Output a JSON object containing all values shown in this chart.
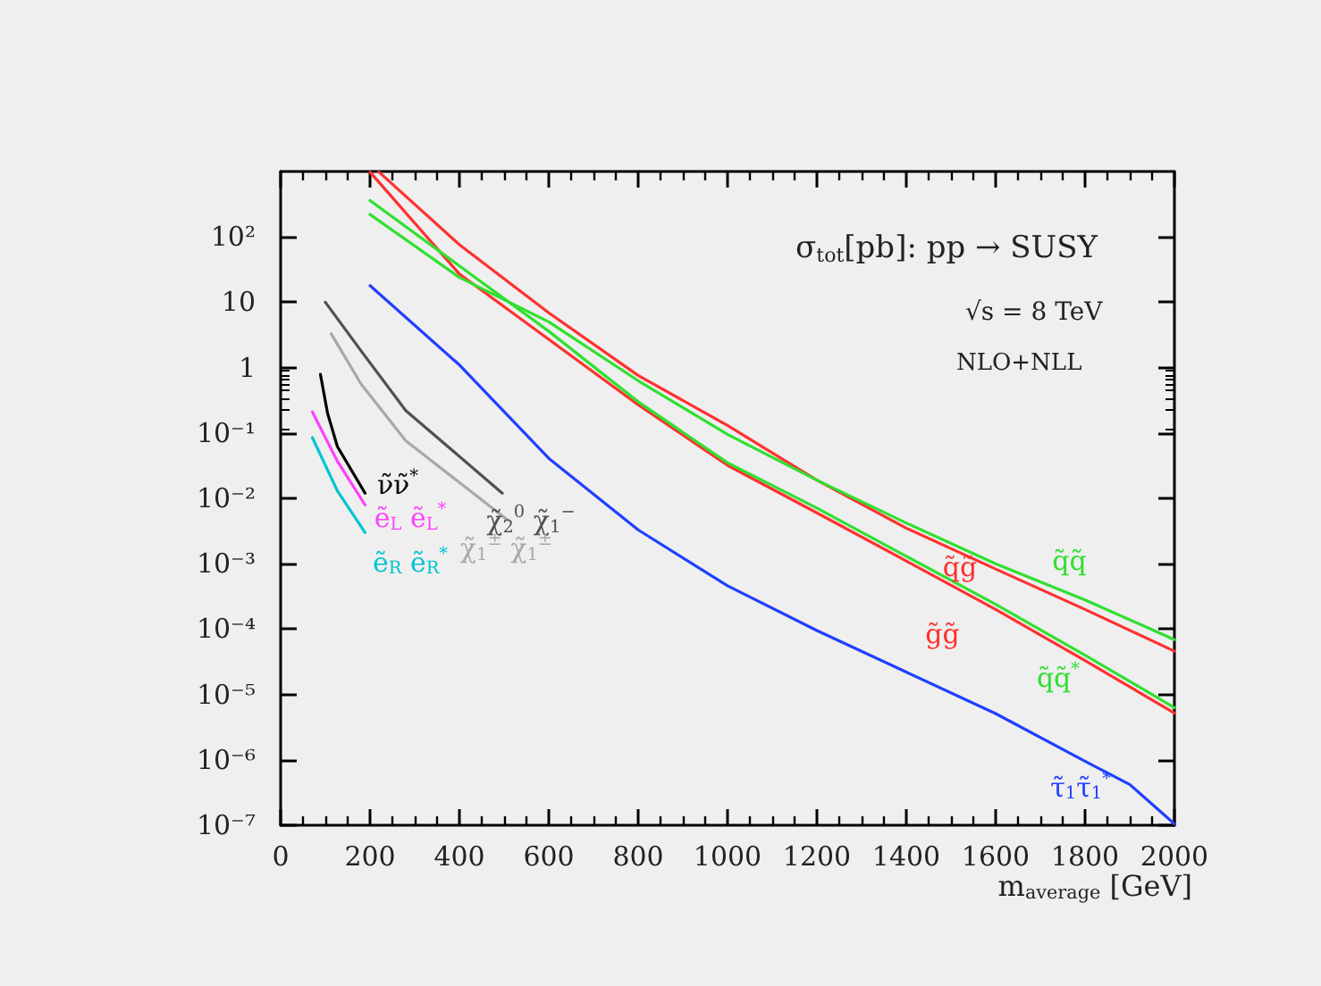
{
  "chart_data": {
    "type": "line",
    "title": "σ$_{tot}$[pb]: pp → SUSY",
    "subtitle": "√s = 8 TeV",
    "xlabel": "m$_{average}$ [GeV]",
    "log": "y",
    "xlim": [
      0,
      2000
    ],
    "xticks": [
      0,
      200,
      400,
      600,
      800,
      1000,
      1200,
      1400,
      1600,
      1800,
      2000
    ],
    "ylim": [
      1e-07,
      1000
    ],
    "yticks": [
      {
        "value": 100,
        "label": "10²"
      },
      {
        "value": 10,
        "label": "10"
      },
      {
        "value": 1,
        "label": "1"
      },
      {
        "value": 0.1,
        "label": "10⁻¹"
      },
      {
        "value": 0.01,
        "label": "10⁻²"
      },
      {
        "value": 0.001,
        "label": "10⁻³"
      },
      {
        "value": 0.0001,
        "label": "10⁻⁴"
      },
      {
        "value": 1e-05,
        "label": "10⁻⁵"
      },
      {
        "value": 1e-06,
        "label": "10⁻⁶"
      },
      {
        "value": 1e-07,
        "label": "10⁻⁷"
      }
    ],
    "series": [
      {
        "name": "q̃g̃",
        "color": "#ff3030",
        "x": [
          220,
          400,
          600,
          800,
          1000,
          1200,
          1400,
          1600,
          1800,
          2000
        ],
        "values": [
          980,
          76,
          6.9,
          0.76,
          0.13,
          0.019,
          0.0035,
          0.00083,
          0.0002,
          4.6e-05
        ]
      },
      {
        "name": "g̃g̃",
        "color": "#ff3030",
        "x": [
          200,
          400,
          600,
          800,
          1000,
          1200,
          1400,
          1600,
          1800,
          2000
        ],
        "values": [
          980,
          27,
          2.7,
          0.27,
          0.032,
          0.006,
          0.0011,
          0.0002,
          3.3e-05,
          5.2e-06
        ]
      },
      {
        "name": "q̃q̃",
        "color": "#30e030",
        "x": [
          200,
          400,
          600,
          800,
          1000,
          1200,
          1400,
          1600,
          1800,
          2000
        ],
        "values": [
          220,
          24,
          5,
          0.63,
          0.095,
          0.019,
          0.0042,
          0.001,
          0.00028,
          6.9e-05
        ]
      },
      {
        "name": "q̃q̃$^{*}$",
        "color": "#30e030",
        "x": [
          200,
          400,
          600,
          800,
          1000,
          1200,
          1400,
          1600,
          1800,
          2000
        ],
        "values": [
          360,
          36,
          3.6,
          0.3,
          0.035,
          0.0071,
          0.0013,
          0.00024,
          4e-05,
          6.3e-06
        ]
      },
      {
        "name": "τ̃$_{1}$τ̃$_{1}$$^{*}$",
        "color": "#2040ff",
        "x": [
          200,
          400,
          600,
          800,
          1000,
          1200,
          1400,
          1600,
          1800,
          1900,
          2000
        ],
        "values": [
          18,
          1.1,
          0.041,
          0.0033,
          0.00046,
          9.5e-05,
          2.2e-05,
          5.1e-06,
          9.5e-07,
          4.2e-07,
          1.05e-07
        ]
      },
      {
        "name": "χ̃$_{2}$$^{0}$ χ̃$_{1}$$^{−}$",
        "color": "#505050",
        "x": [
          100,
          180,
          280,
          496
        ],
        "values": [
          10,
          1.8,
          0.22,
          0.012
        ]
      },
      {
        "name": "χ̃$_{1}$$^{±}$ χ̃$_{1}$$^{±}$",
        "color": "#a8a8a8",
        "x": [
          113,
          180,
          280,
          509
        ],
        "values": [
          3.3,
          0.56,
          0.076,
          0.0046
        ]
      },
      {
        "name": "ν̃ν̃$^{*}$",
        "color": "#000000",
        "x": [
          89,
          105,
          127,
          189
        ],
        "values": [
          0.79,
          0.2,
          0.062,
          0.012
        ]
      },
      {
        "name": "ẽ$_{L}$ ẽ$_{L}$$^{*}$",
        "color": "#ff40ff",
        "x": [
          71,
          127,
          189
        ],
        "values": [
          0.21,
          0.037,
          0.0079
        ]
      },
      {
        "name": "ẽ$_{R}$ ẽ$_{R}$$^{*}$",
        "color": "#00c4d4",
        "x": [
          71,
          127,
          189
        ],
        "values": [
          0.085,
          0.013,
          0.003
        ]
      }
    ],
    "annotations": [
      "NLO+NLL"
    ]
  }
}
